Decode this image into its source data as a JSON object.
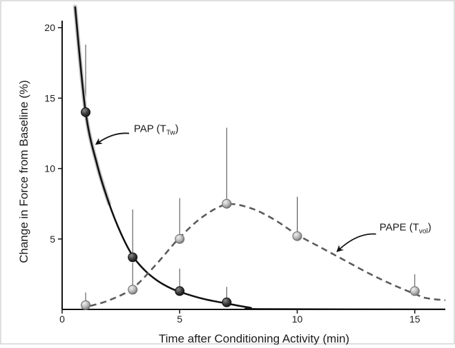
{
  "chart_data": {
    "type": "line",
    "title": "",
    "xlabel": "Time after Conditioning Activity (min)",
    "ylabel": "Change in Force from Baseline (%)",
    "xlim": [
      0,
      16.3
    ],
    "ylim": [
      0,
      20.5
    ],
    "x_ticks": [
      0,
      5,
      10,
      15
    ],
    "y_ticks": [
      5,
      10,
      15,
      20
    ],
    "grid": false,
    "legend": "none",
    "series": [
      {
        "points": [
          {
            "x": 1,
            "y": 14.0,
            "err": 4.8
          },
          {
            "x": 3,
            "y": 3.7,
            "err": 3.4
          },
          {
            "x": 5,
            "y": 1.3,
            "err": 1.6
          },
          {
            "x": 7,
            "y": 0.5,
            "err": 1.1
          }
        ],
        "curve": [
          {
            "x": 0.55,
            "y": 21.5
          },
          {
            "x": 1,
            "y": 14.0
          },
          {
            "x": 1.5,
            "y": 10.2
          },
          {
            "x": 2,
            "y": 7.5
          },
          {
            "x": 2.5,
            "y": 5.4
          },
          {
            "x": 3,
            "y": 3.8
          },
          {
            "x": 3.5,
            "y": 2.8
          },
          {
            "x": 4,
            "y": 2.1
          },
          {
            "x": 4.5,
            "y": 1.6
          },
          {
            "x": 5,
            "y": 1.25
          },
          {
            "x": 6,
            "y": 0.75
          },
          {
            "x": 7,
            "y": 0.42
          },
          {
            "x": 8,
            "y": 0.12
          },
          {
            "x": 8.5,
            "y": 0.02
          },
          {
            "x": 16.3,
            "y": 0.0
          }
        ],
        "color": "#111111",
        "marker_color": "#3a3a3a",
        "dashed": false
      },
      {
        "points": [
          {
            "x": 1,
            "y": 0.3,
            "err": 0.9
          },
          {
            "x": 3,
            "y": 1.4,
            "err": 1.9
          },
          {
            "x": 5,
            "y": 5.0,
            "err": 2.9
          },
          {
            "x": 7,
            "y": 7.5,
            "err": 5.4
          },
          {
            "x": 10,
            "y": 5.2,
            "err": 2.8
          },
          {
            "x": 15,
            "y": 1.3,
            "err": 1.2
          }
        ],
        "curve": [
          {
            "x": 1.2,
            "y": 0.25
          },
          {
            "x": 2,
            "y": 0.65
          },
          {
            "x": 3,
            "y": 1.5
          },
          {
            "x": 4,
            "y": 3.2
          },
          {
            "x": 5,
            "y": 5.1
          },
          {
            "x": 6,
            "y": 6.6
          },
          {
            "x": 7,
            "y": 7.45
          },
          {
            "x": 8,
            "y": 7.2
          },
          {
            "x": 9,
            "y": 6.4
          },
          {
            "x": 10,
            "y": 5.3
          },
          {
            "x": 11,
            "y": 4.4
          },
          {
            "x": 12,
            "y": 3.5
          },
          {
            "x": 13,
            "y": 2.6
          },
          {
            "x": 14,
            "y": 1.8
          },
          {
            "x": 15,
            "y": 1.1
          },
          {
            "x": 15.5,
            "y": 0.8
          },
          {
            "x": 16.3,
            "y": 0.65
          }
        ],
        "color": "#5a5a5a",
        "marker_color": "#b8b8b8",
        "dashed": true
      }
    ],
    "annotations": [
      {
        "label": "PAP (T",
        "sub": "Tw",
        "suffix": ")",
        "x": 3.05,
        "y": 12.6,
        "arrow_from": {
          "x": 2.85,
          "y": 12.5
        },
        "arrow_to": {
          "x": 1.5,
          "y": 11.8
        }
      },
      {
        "label": "PAPE (T",
        "sub": "vol",
        "suffix": ")",
        "x": 13.5,
        "y": 5.6,
        "arrow_from": {
          "x": 13.35,
          "y": 5.35
        },
        "arrow_to": {
          "x": 11.75,
          "y": 4.2
        }
      }
    ]
  }
}
